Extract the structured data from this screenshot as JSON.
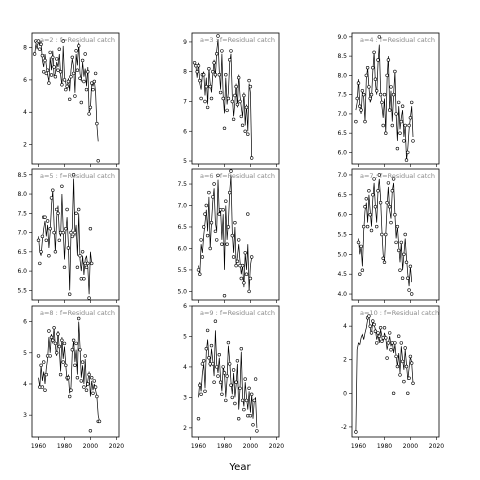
{
  "figure": {
    "xlabel": "Year"
  },
  "chart_data": [
    {
      "type": "line",
      "title": "a=2 : f=Residual catch",
      "xlim": [
        1955,
        2022
      ],
      "yticks": [
        2,
        4,
        6,
        8
      ],
      "ylim": [
        0.8,
        8.9
      ],
      "x_start": 1957,
      "x_step": 1,
      "values": [
        7.5,
        8.2,
        7.9,
        8.5,
        8.1,
        8.4,
        7.2,
        6.8,
        7.6,
        6.9,
        6.3,
        5.9,
        7.4,
        6.6,
        7.8,
        6.2,
        6.4,
        7.1,
        6.8,
        7.6,
        6.3,
        5.6,
        8.1,
        6.2,
        5.8,
        5.4,
        6.1,
        5.3,
        6.6,
        7.3,
        6.8,
        5.2,
        7.6,
        6.9,
        8.3,
        6.4,
        5.9,
        7.1,
        6.2,
        6.7,
        5.6,
        6.8,
        4.0,
        4.2,
        5.9,
        5.6,
        6.0,
        5.2,
        3.2,
        2.2
      ],
      "points": [
        7.6,
        8.4,
        8.3,
        8.4,
        7.9,
        8.2,
        7.5,
        6.5,
        7.2,
        6.4,
        6.6,
        5.8,
        7.7,
        6.3,
        7.4,
        6.8,
        6.2,
        7.3,
        6.6,
        7.9,
        6.5,
        5.7,
        8.4,
        6.0,
        5.4,
        5.6,
        5.9,
        4.8,
        6.2,
        7.4,
        6.4,
        5.0,
        7.8,
        6.6,
        8.1,
        6.1,
        4.6,
        7.2,
        5.9,
        7.6,
        5.4,
        6.5,
        3.9,
        4.3,
        5.8,
        5.4,
        5.9,
        6.4,
        3.3,
        1.0
      ]
    },
    {
      "type": "line",
      "title": "a=5 : f=Residual catch",
      "xlim": [
        1955,
        2022
      ],
      "yticks": [
        5.5,
        6.0,
        6.5,
        7.0,
        7.5,
        8.0,
        8.5
      ],
      "ylim": [
        5.25,
        8.65
      ],
      "x_start": 1960,
      "x_step": 1,
      "values": [
        6.9,
        6.5,
        6.4,
        6.8,
        7.1,
        7.3,
        6.9,
        7.2,
        6.6,
        7.0,
        7.7,
        8.1,
        7.2,
        6.5,
        7.4,
        7.7,
        7.0,
        6.9,
        8.0,
        7.1,
        6.3,
        7.0,
        7.4,
        6.7,
        5.5,
        7.0,
        7.1,
        8.4,
        6.9,
        7.2,
        6.4,
        7.5,
        6.3,
        6.0,
        6.4,
        5.9,
        6.3,
        6.4,
        6.1,
        5.4,
        6.5,
        6.2
      ],
      "points": [
        6.8,
        6.2,
        6.5,
        6.9,
        7.4,
        7.4,
        6.8,
        7.3,
        6.4,
        7.1,
        7.9,
        8.1,
        7.0,
        6.5,
        7.6,
        7.5,
        6.8,
        7.0,
        8.2,
        7.0,
        6.1,
        7.1,
        7.6,
        6.6,
        5.4,
        7.0,
        6.9,
        8.5,
        7.0,
        7.5,
        6.1,
        7.6,
        6.4,
        5.8,
        6.5,
        5.8,
        6.2,
        6.1,
        6.2,
        5.3,
        7.1,
        6.2
      ]
    },
    {
      "type": "line",
      "title": "a=8 : f=Residual catch",
      "xlim": [
        1955,
        2022
      ],
      "yticks": [
        3,
        4,
        5,
        6
      ],
      "ylim": [
        2.3,
        6.5
      ],
      "x_start": 1960,
      "x_step": 1,
      "values": [
        4.2,
        3.9,
        4.6,
        4.1,
        4.4,
        4.0,
        4.5,
        4.8,
        5.5,
        5.0,
        5.6,
        5.3,
        5.8,
        5.2,
        4.9,
        5.7,
        5.1,
        4.4,
        5.5,
        4.8,
        5.2,
        4.6,
        4.1,
        4.3,
        3.7,
        3.9,
        5.0,
        5.4,
        4.7,
        5.1,
        4.3,
        6.0,
        5.2,
        4.2,
        4.6,
        4.0,
        4.8,
        3.9,
        4.1,
        4.4,
        3.6,
        4.1,
        3.8,
        4.0,
        3.8,
        3.6,
        3.0,
        2.8
      ],
      "points": [
        4.9,
        3.9,
        4.6,
        3.9,
        4.7,
        3.8,
        4.3,
        4.9,
        5.7,
        4.9,
        5.5,
        5.4,
        5.8,
        5.3,
        5.0,
        5.6,
        5.2,
        4.3,
        5.4,
        4.7,
        5.3,
        4.6,
        4.2,
        4.2,
        3.6,
        3.8,
        5.1,
        5.4,
        4.6,
        5.3,
        4.2,
        6.1,
        5.1,
        4.1,
        4.7,
        3.9,
        4.9,
        3.8,
        4.0,
        4.3,
        2.5,
        4.2,
        3.7,
        4.1,
        3.9,
        3.6,
        2.8,
        2.8
      ]
    },
    {
      "type": "line",
      "title": "a=3 : f=Residual catch",
      "xlim": [
        1955,
        2022
      ],
      "yticks": [
        5,
        6,
        7,
        8,
        9
      ],
      "ylim": [
        4.9,
        9.3
      ],
      "x_start": 1957,
      "x_step": 1,
      "values": [
        8.3,
        8.2,
        7.8,
        8.3,
        7.6,
        7.4,
        7.9,
        8.0,
        7.2,
        7.8,
        6.9,
        8.1,
        7.6,
        7.3,
        7.9,
        8.4,
        7.8,
        8.7,
        9.1,
        8.0,
        7.4,
        8.6,
        7.2,
        6.6,
        7.8,
        6.9,
        7.3,
        8.3,
        8.6,
        7.2,
        6.5,
        7.0,
        7.6,
        6.8,
        7.9,
        7.2,
        6.8,
        6.5,
        7.3,
        6.2,
        6.9,
        6.0,
        7.6,
        7.3,
        5.1
      ],
      "points": [
        8.3,
        8.2,
        8.0,
        8.2,
        7.7,
        7.1,
        7.9,
        7.9,
        7.0,
        7.5,
        6.8,
        8.1,
        7.5,
        7.1,
        8.0,
        8.3,
        7.9,
        8.6,
        9.2,
        7.9,
        7.3,
        8.7,
        7.1,
        6.1,
        7.9,
        6.7,
        7.1,
        8.4,
        8.7,
        7.0,
        6.4,
        7.2,
        7.5,
        6.9,
        7.8,
        7.0,
        6.5,
        6.2,
        7.2,
        6.0,
        6.8,
        5.9,
        7.7,
        7.5,
        5.1
      ]
    },
    {
      "type": "line",
      "title": "a=6 : f=Residual catch",
      "xlim": [
        1955,
        2022
      ],
      "yticks": [
        5.0,
        5.5,
        6.0,
        6.5,
        7.0,
        7.5
      ],
      "ylim": [
        4.8,
        7.85
      ],
      "x_start": 1960,
      "x_step": 1,
      "values": [
        5.6,
        5.4,
        6.1,
        5.9,
        6.3,
        6.6,
        6.9,
        6.4,
        7.2,
        6.0,
        6.6,
        7.1,
        7.4,
        6.6,
        6.4,
        7.6,
        6.8,
        6.9,
        6.2,
        6.8,
        5.5,
        7.0,
        6.2,
        6.6,
        7.3,
        7.7,
        6.4,
        5.9,
        6.5,
        5.6,
        5.8,
        6.1,
        5.7,
        5.4,
        5.6,
        5.1,
        5.9,
        5.5,
        6.1,
        5.0,
        5.6,
        5.8
      ],
      "points": [
        5.5,
        5.4,
        6.2,
        5.8,
        6.5,
        6.8,
        7.0,
        6.3,
        7.3,
        6.0,
        6.6,
        7.2,
        7.5,
        6.4,
        6.2,
        7.7,
        6.8,
        6.9,
        6.1,
        6.9,
        4.9,
        7.1,
        6.1,
        6.5,
        7.3,
        7.8,
        6.3,
        5.8,
        6.6,
        5.6,
        5.7,
        6.2,
        5.6,
        5.3,
        5.6,
        5.2,
        5.9,
        5.4,
        6.8,
        5.0,
        5.3,
        5.8
      ]
    },
    {
      "type": "line",
      "title": "a=9 : f=Residual catch",
      "xlim": [
        1955,
        2022
      ],
      "yticks": [
        2,
        3,
        4,
        5,
        6
      ],
      "ylim": [
        1.7,
        6.0
      ],
      "x_start": 1960,
      "x_step": 1,
      "values": [
        3.0,
        3.5,
        3.2,
        3.8,
        4.1,
        3.3,
        4.5,
        4.9,
        4.3,
        4.0,
        4.6,
        4.2,
        3.7,
        5.2,
        4.1,
        3.8,
        4.3,
        3.6,
        3.2,
        4.0,
        3.8,
        3.0,
        3.6,
        4.7,
        4.2,
        3.5,
        3.1,
        3.8,
        3.0,
        3.4,
        4.1,
        2.6,
        3.3,
        4.5,
        3.0,
        2.7,
        3.5,
        3.0,
        2.6,
        3.2,
        2.5,
        3.1,
        2.3,
        2.9,
        3.0,
        2.0
      ],
      "points": [
        2.3,
        3.4,
        3.1,
        4.1,
        4.2,
        3.2,
        4.6,
        5.2,
        4.3,
        4.1,
        4.7,
        4.1,
        3.5,
        5.5,
        4.0,
        3.7,
        4.4,
        3.5,
        3.1,
        4.0,
        3.8,
        2.9,
        3.7,
        4.8,
        4.1,
        3.4,
        3.0,
        3.9,
        2.8,
        3.5,
        4.2,
        2.3,
        3.3,
        4.6,
        2.9,
        2.6,
        3.6,
        2.9,
        2.4,
        3.3,
        2.4,
        3.1,
        2.1,
        2.9,
        3.6,
        1.9
      ]
    },
    {
      "type": "line",
      "title": "a=4 : f=Residual catch",
      "xlim": [
        1955,
        2022
      ],
      "yticks": [
        6.0,
        6.5,
        7.0,
        7.5,
        8.0,
        8.5,
        9.0
      ],
      "ylim": [
        5.7,
        9.1
      ],
      "x_start": 1958,
      "x_step": 1,
      "values": [
        7.1,
        7.3,
        7.9,
        7.2,
        7.0,
        7.6,
        7.4,
        6.8,
        7.9,
        8.2,
        7.7,
        7.3,
        7.4,
        8.1,
        8.6,
        7.8,
        7.5,
        8.3,
        8.8,
        7.6,
        7.2,
        6.9,
        7.4,
        6.5,
        7.9,
        8.5,
        7.1,
        7.6,
        6.8,
        7.5,
        8.1,
        7.0,
        6.3,
        7.2,
        6.6,
        6.9,
        7.1,
        6.4,
        6.7,
        5.8,
        6.1,
        6.6,
        6.9,
        7.2,
        6.4
      ],
      "points": [
        6.8,
        7.4,
        7.8,
        7.2,
        7.1,
        7.6,
        7.5,
        6.8,
        8.0,
        8.2,
        7.7,
        7.4,
        7.5,
        8.2,
        8.6,
        7.9,
        7.6,
        8.4,
        9.0,
        7.5,
        7.3,
        6.7,
        7.5,
        6.5,
        8.0,
        8.4,
        7.1,
        7.7,
        6.7,
        7.5,
        8.1,
        7.0,
        6.1,
        7.3,
        6.5,
        6.8,
        7.2,
        6.3,
        6.7,
        5.8,
        6.0,
        6.7,
        6.9,
        7.3,
        6.3
      ]
    },
    {
      "type": "line",
      "title": "a=7 : f=Residual catch",
      "xlim": [
        1955,
        2022
      ],
      "yticks": [
        4.0,
        4.5,
        5.0,
        5.5,
        6.0,
        6.5,
        7.0
      ],
      "ylim": [
        3.85,
        7.15
      ],
      "x_start": 1960,
      "x_step": 1,
      "values": [
        5.4,
        5.0,
        5.2,
        4.7,
        5.6,
        6.1,
        6.3,
        5.8,
        6.5,
        6.1,
        5.7,
        6.4,
        6.8,
        6.2,
        5.8,
        6.6,
        6.9,
        6.4,
        5.6,
        5.0,
        4.8,
        5.5,
        6.2,
        6.7,
        6.1,
        5.9,
        6.6,
        6.8,
        6.0,
        5.4,
        5.7,
        5.2,
        4.8,
        5.3,
        4.6,
        5.0,
        5.4,
        4.9,
        4.5,
        4.2,
        4.7,
        4.3
      ],
      "points": [
        5.3,
        4.5,
        5.2,
        4.6,
        5.7,
        6.2,
        6.4,
        5.7,
        6.6,
        6.0,
        5.6,
        6.5,
        6.9,
        6.2,
        5.7,
        6.6,
        7.0,
        6.3,
        5.5,
        4.9,
        4.8,
        5.5,
        6.3,
        6.8,
        6.2,
        5.8,
        6.6,
        6.9,
        6.0,
        5.3,
        5.7,
        5.1,
        4.6,
        5.3,
        4.4,
        5.0,
        5.5,
        4.8,
        4.4,
        4.1,
        4.7,
        4.0
      ]
    },
    {
      "type": "line",
      "title": "a=10 : f=Residual catch",
      "xlim": [
        1955,
        2022
      ],
      "yticks": [
        -2,
        0,
        2,
        4
      ],
      "ylim": [
        -2.6,
        5.2
      ],
      "x_start": 1958,
      "x_step": 1,
      "values": [
        -2.3,
        2.6,
        3.0,
        2.9,
        3.3,
        3.5,
        3.2,
        3.6,
        3.9,
        4.4,
        4.6,
        3.9,
        3.5,
        4.4,
        4.1,
        3.8,
        3.2,
        3.5,
        3.0,
        3.8,
        3.4,
        3.1,
        3.6,
        3.3,
        2.6,
        3.0,
        3.4,
        2.8,
        3.1,
        2.4,
        2.9,
        2.2,
        1.6,
        2.4,
        1.2,
        2.8,
        2.0,
        1.4,
        2.6,
        1.7,
        0.8,
        1.5,
        2.2,
        1.8,
        0.6
      ],
      "points": [
        -2.3,
        null,
        null,
        null,
        null,
        null,
        null,
        null,
        null,
        4.5,
        4.6,
        4.0,
        3.6,
        4.3,
        4.1,
        3.7,
        3.0,
        3.6,
        3.4,
        3.9,
        3.1,
        3.3,
        3.9,
        3.3,
        2.1,
        3.0,
        3.6,
        2.6,
        3.0,
        0.0,
        3.0,
        2.2,
        1.6,
        3.4,
        1.1,
        3.0,
        1.9,
        0.7,
        2.7,
        1.6,
        0.0,
        0.9,
        2.2,
        1.8,
        0.6
      ]
    }
  ]
}
